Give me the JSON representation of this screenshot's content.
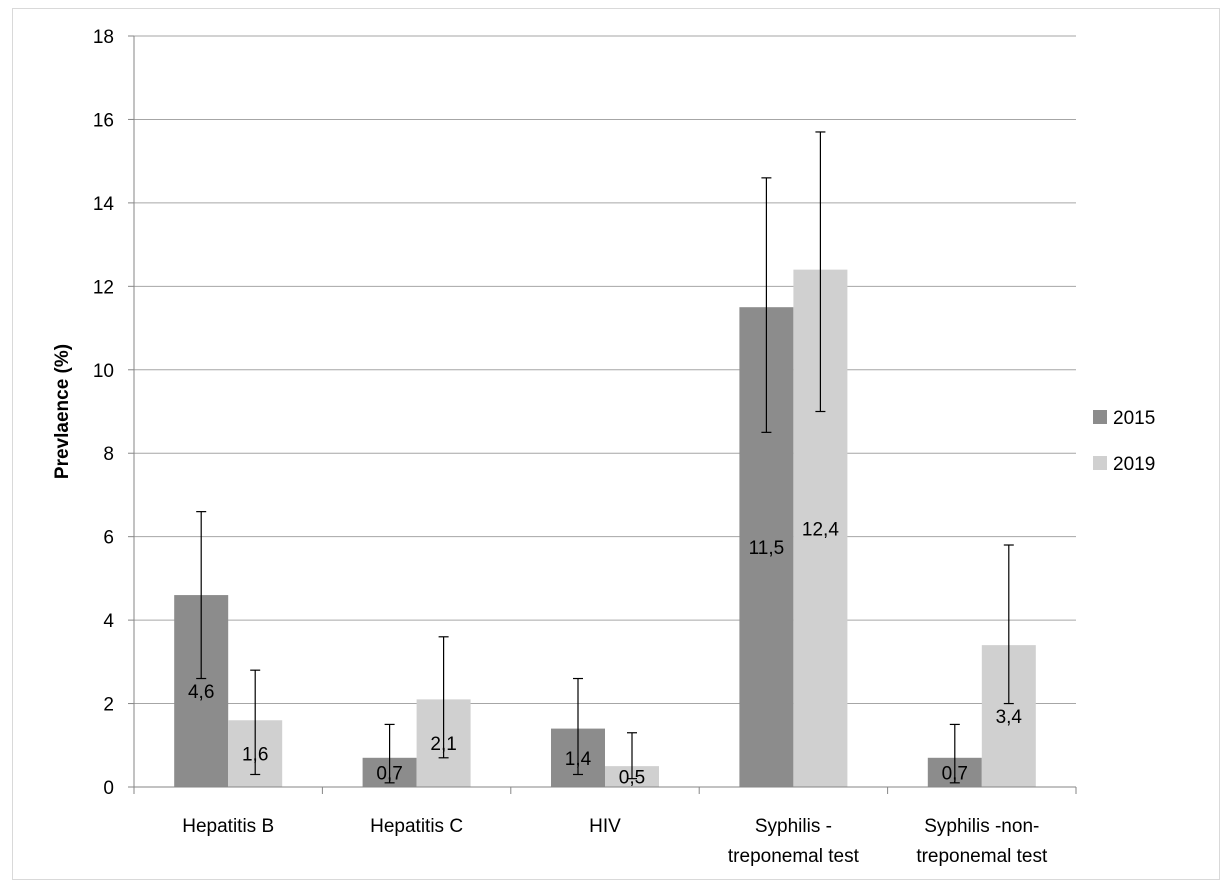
{
  "chart_data": {
    "type": "bar",
    "ylabel": "Prevlaence (%)",
    "ylim": [
      0,
      18
    ],
    "yticks": [
      0,
      2,
      4,
      6,
      8,
      10,
      12,
      14,
      16,
      18
    ],
    "grid": true,
    "legend_position": "right",
    "categories": [
      [
        "Hepatitis B"
      ],
      [
        "Hepatitis C"
      ],
      [
        "HIV"
      ],
      [
        "Syphilis -",
        "treponemal test"
      ],
      [
        "Syphilis -non-",
        "treponemal test"
      ]
    ],
    "series": [
      {
        "name": "2015",
        "color": "#8c8c8c",
        "values": [
          4.6,
          0.7,
          1.4,
          11.5,
          0.7
        ],
        "labels": [
          "4,6",
          "0,7",
          "1,4",
          "11,5",
          "0,7"
        ],
        "error_low": [
          2.6,
          0.1,
          0.3,
          8.5,
          0.1
        ],
        "error_high": [
          6.6,
          1.5,
          2.6,
          14.6,
          1.5
        ]
      },
      {
        "name": "2019",
        "color": "#d0d0d0",
        "values": [
          1.6,
          2.1,
          0.5,
          12.4,
          3.4
        ],
        "labels": [
          "1,6",
          "2,1",
          "0,5",
          "12,4",
          "3,4"
        ],
        "error_low": [
          0.3,
          0.7,
          0.2,
          9.0,
          2.0
        ],
        "error_high": [
          2.8,
          3.6,
          1.3,
          15.7,
          5.8
        ]
      }
    ]
  }
}
